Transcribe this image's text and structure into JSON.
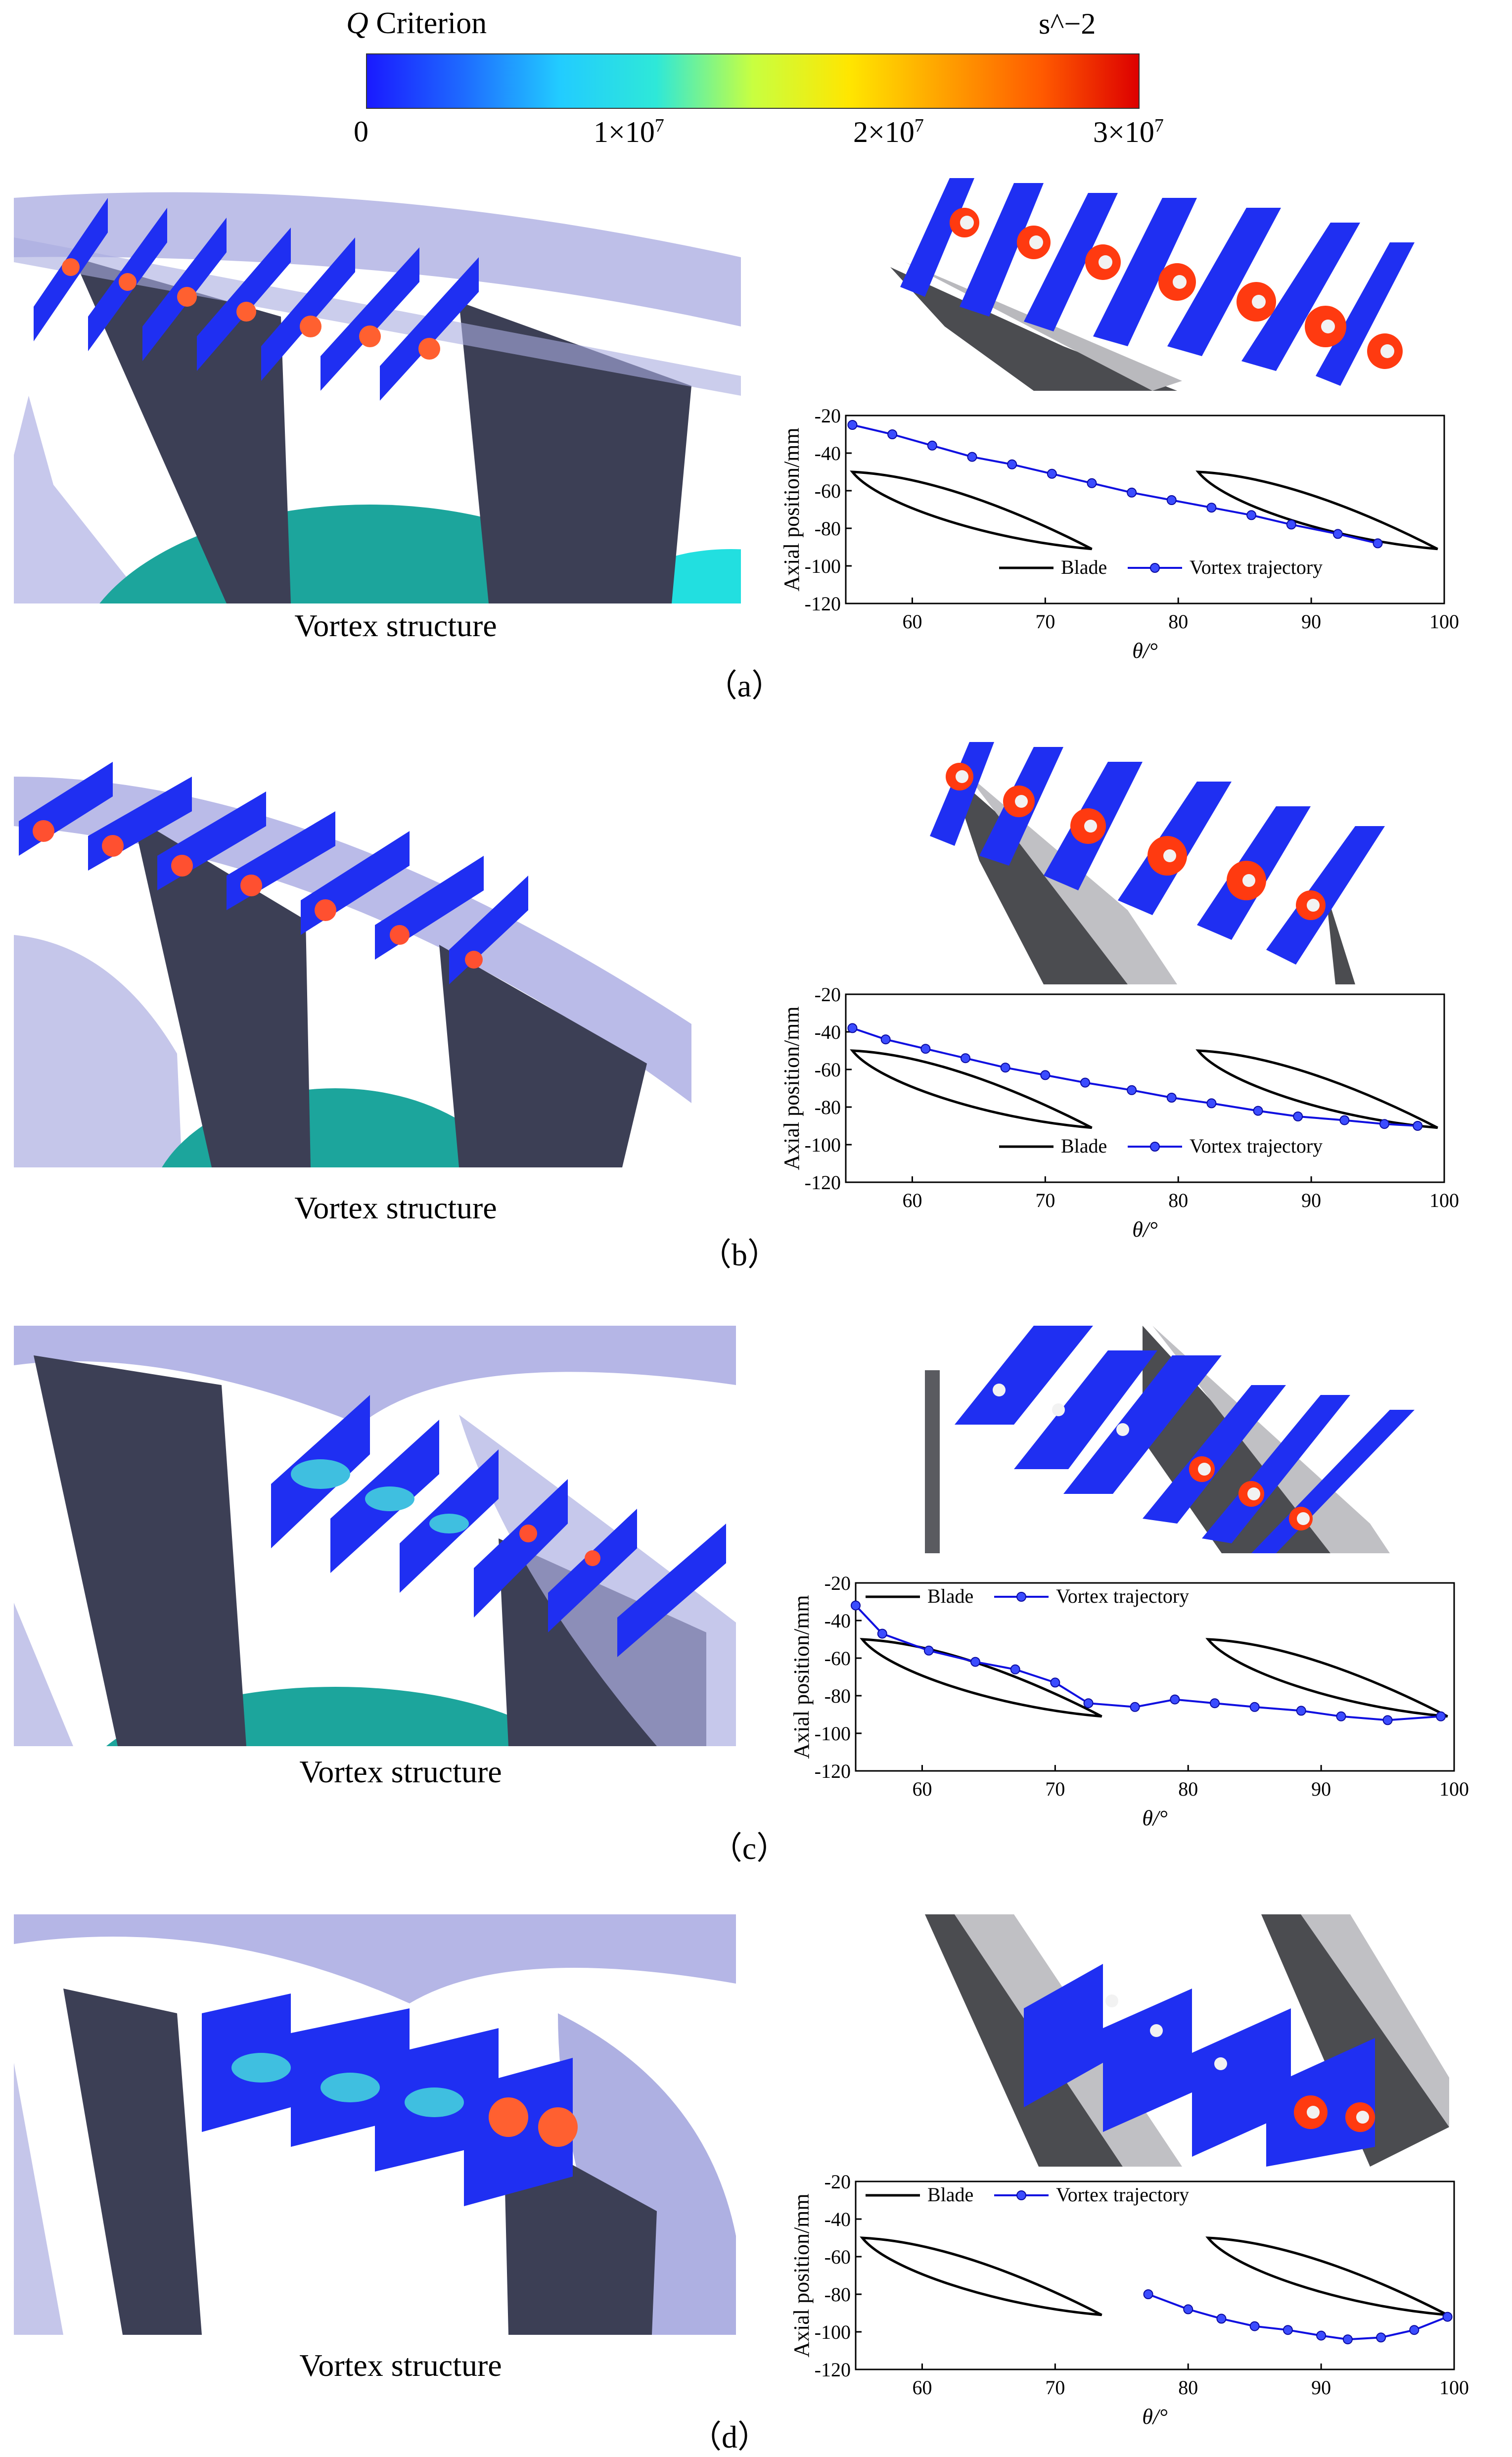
{
  "colorbar": {
    "title_q": "Q",
    "title_rest": " Criterion",
    "unit": "s^−2",
    "tick_labels": [
      "0",
      "1×10",
      "2×10",
      "3×10"
    ],
    "tick_exp": "7",
    "colors": [
      "#1a1aff",
      "#1e6bff",
      "#22ccff",
      "#2ee8d8",
      "#c8ff40",
      "#ffe600",
      "#ffa000",
      "#ff5a00",
      "#dd0000"
    ]
  },
  "vortex_label": "Vortex structure",
  "panels": [
    {
      "label": "（a）"
    },
    {
      "label": "（b）"
    },
    {
      "label": "（c）"
    },
    {
      "label": "（d）"
    }
  ],
  "chart_data": [
    {
      "type": "line",
      "panel": "a",
      "xlabel": "θ/°",
      "ylabel": "Axial position/mm",
      "xlim": [
        55,
        100
      ],
      "ylim": [
        -120,
        -20
      ],
      "xticks": [
        60,
        70,
        80,
        90,
        100
      ],
      "yticks": [
        -20,
        -40,
        -60,
        -80,
        -100,
        -120
      ],
      "legend": [
        "Blade",
        "Vortex trajectory"
      ],
      "legend_position": "bottom-right",
      "blade1": {
        "lead": [
          55.5,
          -50
        ],
        "trail": [
          73.5,
          -91
        ]
      },
      "blade2": {
        "lead": [
          81.5,
          -50
        ],
        "trail": [
          99.5,
          -91
        ]
      },
      "series": [
        {
          "name": "Vortex trajectory",
          "x": [
            55.5,
            58.5,
            61.5,
            64.5,
            67.5,
            70.5,
            73.5,
            76.5,
            79.5,
            82.5,
            85.5,
            88.5,
            92,
            95
          ],
          "y": [
            -25,
            -30,
            -36,
            -42,
            -46,
            -51,
            -56,
            -61,
            -65,
            -69,
            -73,
            -78,
            -83,
            -88
          ]
        }
      ]
    },
    {
      "type": "line",
      "panel": "b",
      "xlabel": "θ/°",
      "ylabel": "Axial position/mm",
      "xlim": [
        55,
        100
      ],
      "ylim": [
        -120,
        -20
      ],
      "xticks": [
        60,
        70,
        80,
        90,
        100
      ],
      "yticks": [
        -20,
        -40,
        -60,
        -80,
        -100,
        -120
      ],
      "legend": [
        "Blade",
        "Vortex trajectory"
      ],
      "legend_position": "bottom-right",
      "blade1": {
        "lead": [
          55.5,
          -50
        ],
        "trail": [
          73.5,
          -91
        ]
      },
      "blade2": {
        "lead": [
          81.5,
          -50
        ],
        "trail": [
          99.5,
          -91
        ]
      },
      "series": [
        {
          "name": "Vortex trajectory",
          "x": [
            55.5,
            58,
            61,
            64,
            67,
            70,
            73,
            76.5,
            79.5,
            82.5,
            86,
            89,
            92.5,
            95.5,
            98
          ],
          "y": [
            -38,
            -44,
            -49,
            -54,
            -59,
            -63,
            -67,
            -71,
            -75,
            -78,
            -82,
            -85,
            -87,
            -89,
            -90
          ]
        }
      ]
    },
    {
      "type": "line",
      "panel": "c",
      "xlabel": "θ/°",
      "ylabel": "Axial position/mm",
      "xlim": [
        55,
        100
      ],
      "ylim": [
        -120,
        -20
      ],
      "xticks": [
        60,
        70,
        80,
        90,
        100
      ],
      "yticks": [
        -20,
        -40,
        -60,
        -80,
        -100,
        -120
      ],
      "legend": [
        "Blade",
        "Vortex trajectory"
      ],
      "legend_position": "top-left",
      "blade1": {
        "lead": [
          55.5,
          -50
        ],
        "trail": [
          73.5,
          -91
        ]
      },
      "blade2": {
        "lead": [
          81.5,
          -50
        ],
        "trail": [
          99.5,
          -91
        ]
      },
      "series": [
        {
          "name": "Vortex trajectory",
          "x": [
            55,
            57,
            60.5,
            64,
            67,
            70,
            72.5,
            76,
            79,
            82,
            85,
            88.5,
            91.5,
            95,
            99
          ],
          "y": [
            -32,
            -47,
            -56,
            -62,
            -66,
            -73,
            -84,
            -86,
            -82,
            -84,
            -86,
            -88,
            -91,
            -93,
            -91
          ]
        }
      ]
    },
    {
      "type": "line",
      "panel": "d",
      "xlabel": "θ/°",
      "ylabel": "Axial position/mm",
      "xlim": [
        55,
        100
      ],
      "ylim": [
        -120,
        -20
      ],
      "xticks": [
        60,
        70,
        80,
        90,
        100
      ],
      "yticks": [
        -20,
        -40,
        -60,
        -80,
        -100,
        -120
      ],
      "legend": [
        "Blade",
        "Vortex trajectory"
      ],
      "legend_position": "top-left",
      "blade1": {
        "lead": [
          55.5,
          -50
        ],
        "trail": [
          73.5,
          -91
        ]
      },
      "blade2": {
        "lead": [
          81.5,
          -50
        ],
        "trail": [
          99.5,
          -91
        ]
      },
      "series": [
        {
          "name": "Vortex trajectory",
          "x": [
            77,
            80,
            82.5,
            85,
            87.5,
            90,
            92,
            94.5,
            97,
            99.5
          ],
          "y": [
            -80,
            -88,
            -93,
            -97,
            -99,
            -102,
            -104,
            -103,
            -99,
            -92
          ]
        }
      ]
    }
  ]
}
